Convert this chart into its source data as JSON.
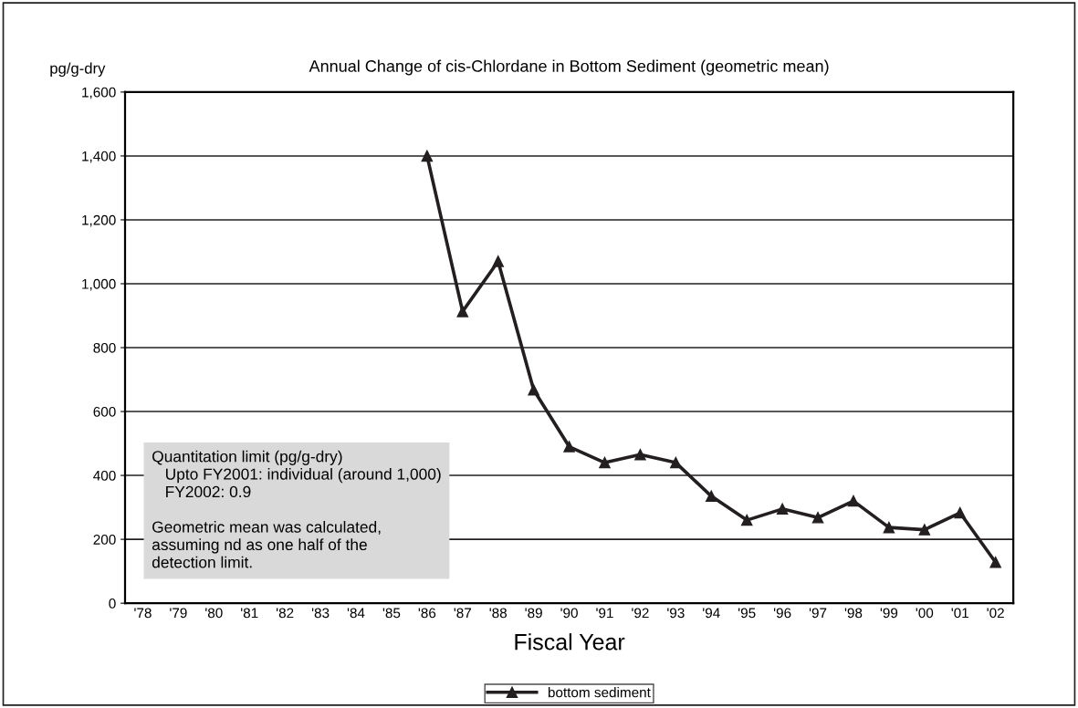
{
  "chart_data": {
    "type": "line",
    "title": "Annual Change of cis-Chlordane in Bottom Sediment (geometric mean)",
    "xlabel": "Fiscal Year",
    "ylabel": "pg/g-dry",
    "categories": [
      "'78",
      "'79",
      "'80",
      "'81",
      "'82",
      "'83",
      "'84",
      "'85",
      "'86",
      "'87",
      "'88",
      "'89",
      "'90",
      "'91",
      "'92",
      "'93",
      "'94",
      "'95",
      "'96",
      "'97",
      "'98",
      "'99",
      "'00",
      "'01",
      "'02"
    ],
    "series": [
      {
        "name": "bottom sediment",
        "color": "#231f20",
        "values": [
          null,
          null,
          null,
          null,
          null,
          null,
          null,
          null,
          1400,
          913,
          1070,
          668,
          490,
          440,
          465,
          440,
          335,
          260,
          295,
          268,
          320,
          237,
          230,
          283,
          128
        ]
      }
    ],
    "ylim": [
      0,
      1600
    ],
    "yticks": [
      0,
      200,
      400,
      600,
      800,
      {
        "value": 1000,
        "label": "1,000"
      },
      {
        "value": 1200,
        "label": "1,200"
      },
      {
        "value": 1400,
        "label": "1,400"
      },
      {
        "value": 1600,
        "label": "1,600"
      }
    ],
    "grid": "y",
    "legend": "bottom",
    "marker": "triangle",
    "line_style": "solid",
    "annotations": [
      "Quantitation limit (pg/g-dry)\n   Upto FY2001: individual (around 1,000)\n   FY2002: 0.9\n\nGeometric mean was calculated,\nassuming nd as one half of the\ndetection limit."
    ]
  }
}
